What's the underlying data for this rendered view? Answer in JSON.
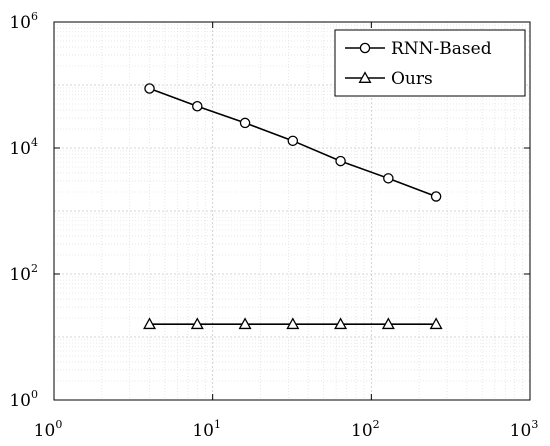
{
  "chart_data": {
    "type": "line",
    "title": "",
    "xlabel": "",
    "ylabel": "",
    "x_scale": "log",
    "y_scale": "log",
    "xlim": [
      1,
      1000
    ],
    "ylim": [
      1,
      1000000
    ],
    "grid": true,
    "minor_grid": true,
    "legend_position": "top-right",
    "x_ticks": [
      {
        "base": "10",
        "exp": "0",
        "value": 1
      },
      {
        "base": "10",
        "exp": "1",
        "value": 10
      },
      {
        "base": "10",
        "exp": "2",
        "value": 100
      },
      {
        "base": "10",
        "exp": "3",
        "value": 1000
      }
    ],
    "y_ticks": [
      {
        "base": "10",
        "exp": "0",
        "value": 1
      },
      {
        "base": "10",
        "exp": "2",
        "value": 100
      },
      {
        "base": "10",
        "exp": "4",
        "value": 10000
      },
      {
        "base": "10",
        "exp": "6",
        "value": 1000000
      }
    ],
    "x": [
      4,
      8,
      16,
      32,
      64,
      128,
      256
    ],
    "series": [
      {
        "name": "RNN-Based",
        "marker": "circle",
        "color": "#000000",
        "values": [
          88000,
          46000,
          25000,
          13000,
          6200,
          3300,
          1700
        ]
      },
      {
        "name": "Ours",
        "marker": "triangle",
        "color": "#000000",
        "values": [
          16,
          16,
          16,
          16,
          16,
          16,
          16
        ]
      }
    ]
  }
}
